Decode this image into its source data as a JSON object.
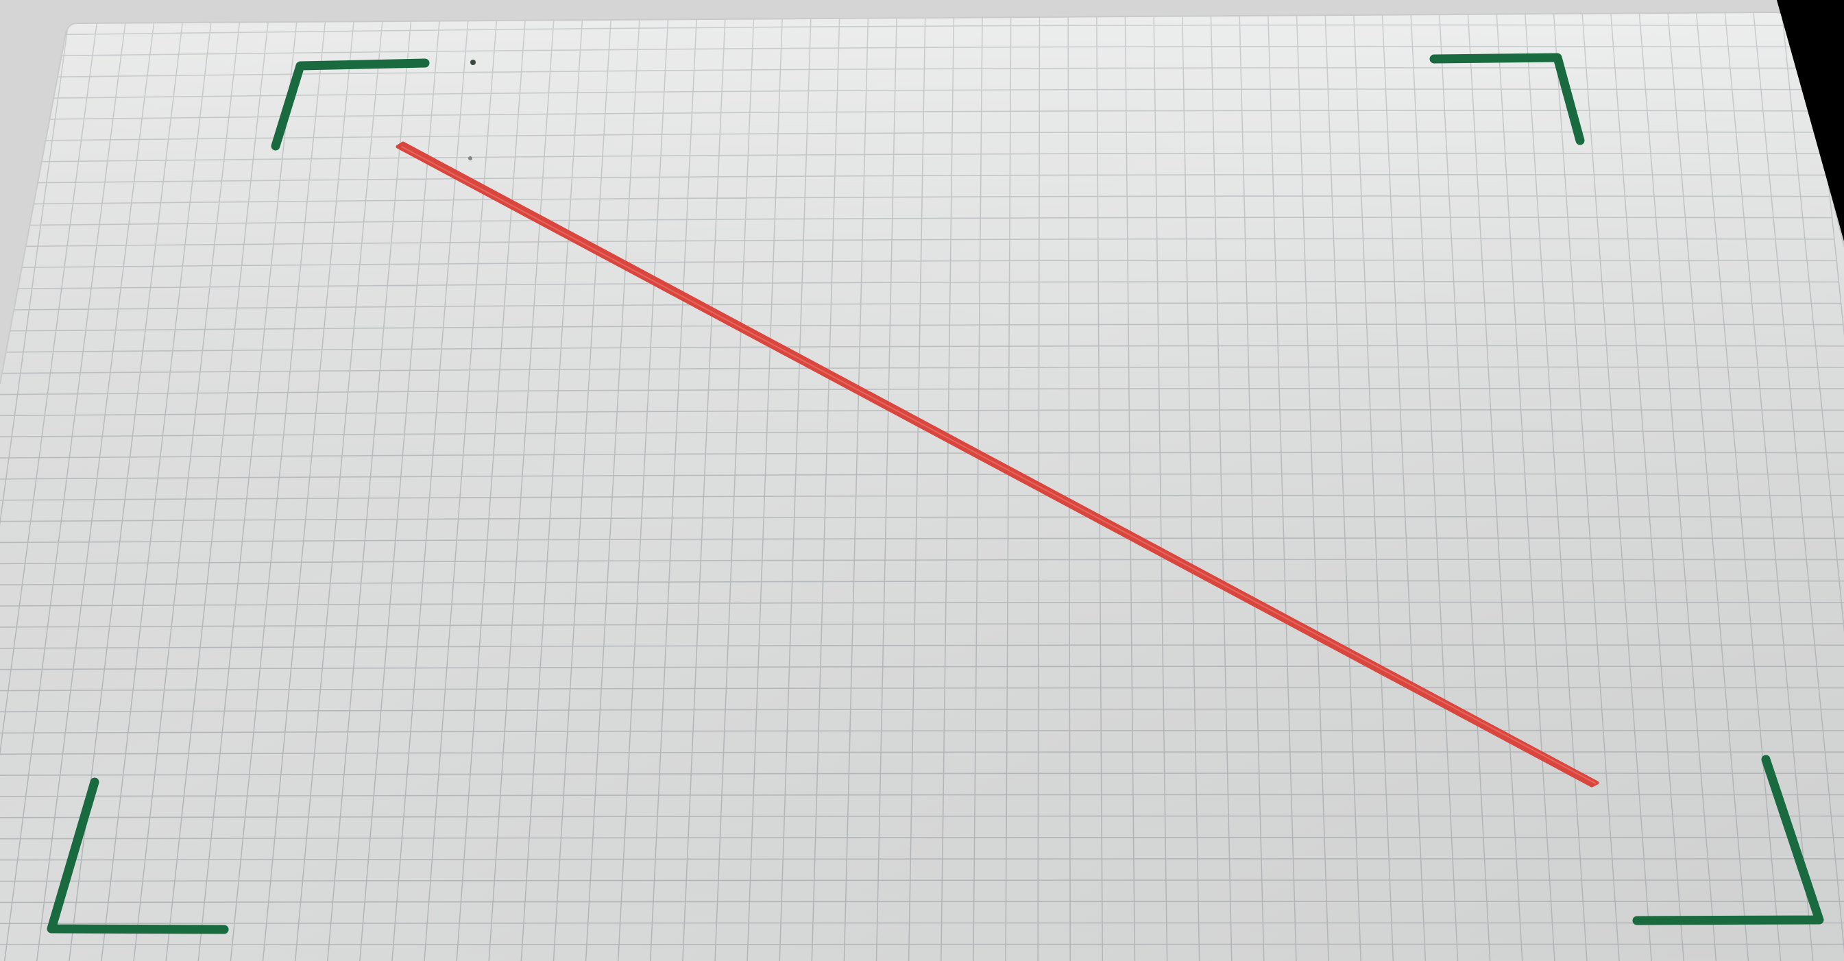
{
  "scene": {
    "subject": "grid-paper-sheet",
    "colors": {
      "background": "#000000",
      "paper_light": "#ececeb",
      "paper_mid": "#e2e3e2",
      "paper_shadow": "#d4d5d4",
      "grid_line": "#b9bcbe",
      "corner_mark": "#1a6a40",
      "diagonal_line": "#d9463e"
    },
    "marks": [
      {
        "name": "corner-mark-top-left",
        "kind": "corner-bracket",
        "color": "corner_mark"
      },
      {
        "name": "corner-mark-top-right",
        "kind": "corner-bracket",
        "color": "corner_mark"
      },
      {
        "name": "corner-mark-bottom-left",
        "kind": "corner-bracket",
        "color": "corner_mark"
      },
      {
        "name": "corner-mark-bottom-right",
        "kind": "corner-bracket",
        "color": "corner_mark"
      },
      {
        "name": "red-diagonal-line",
        "kind": "line",
        "color": "diagonal_line"
      }
    ]
  }
}
